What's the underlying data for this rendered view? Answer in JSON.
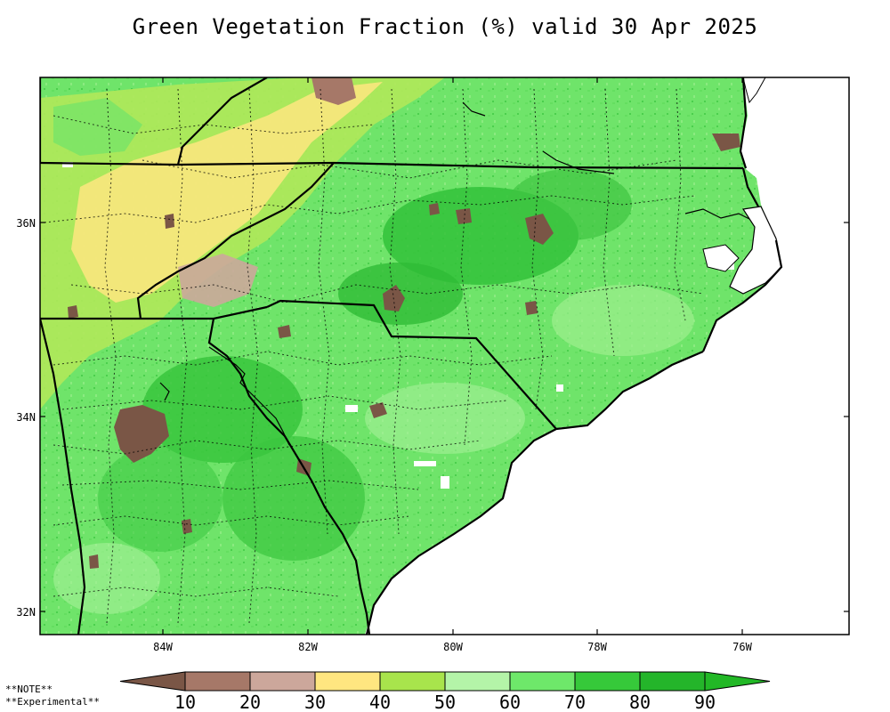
{
  "title": "Green Vegetation Fraction (%) valid 30 Apr 2025",
  "map": {
    "lon_ticks": [
      "84W",
      "82W",
      "80W",
      "78W",
      "76W"
    ],
    "lat_ticks": [
      "36N",
      "34N",
      "32N"
    ],
    "lon_range": [
      -85.6,
      -74.8
    ],
    "lat_range": [
      31.7,
      37.4
    ],
    "features": [
      "state boundaries",
      "county boundaries (dotted)",
      "coastline"
    ],
    "regions_shown": [
      "North Carolina",
      "South Carolina",
      "Georgia",
      "Virginia",
      "Tennessee"
    ]
  },
  "colorbar": {
    "labels": [
      "10",
      "20",
      "30",
      "40",
      "50",
      "60",
      "70",
      "80",
      "90"
    ],
    "colors": [
      "#7a5646",
      "#a67868",
      "#cca79b",
      "#ffe680",
      "#a8e44c",
      "#b4f4a8",
      "#6ee86a",
      "#36c93a",
      "#24b52a",
      "#22b826"
    ]
  },
  "notes": [
    "**NOTE**",
    "**Experimental**"
  ]
}
